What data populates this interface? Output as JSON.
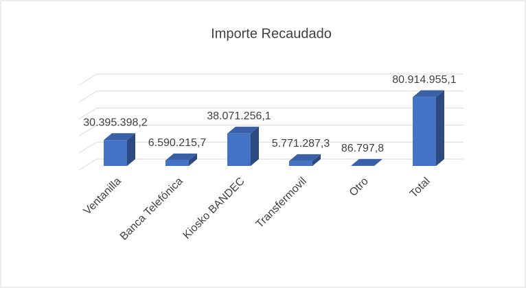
{
  "chart_data": {
    "type": "bar3d",
    "title": "Importe Recaudado",
    "categories": [
      "Ventanilla",
      "Banca Telefónica",
      "Kiosko BANDEC",
      "Transfermovil",
      "Otro",
      "Total"
    ],
    "values": [
      30395398.2,
      6590215.7,
      38071256.1,
      5771287.3,
      86797.8,
      80914955.1
    ],
    "value_labels": [
      "30.395.398,2",
      "6.590.215,7",
      "38.071.256,1",
      "5.771.287,3",
      "86.797,8",
      "80.914.955,1"
    ],
    "color": "#4472c4",
    "ylim": [
      0,
      100000000
    ],
    "yticks": [
      0,
      20000000,
      40000000,
      60000000,
      80000000,
      100000000
    ],
    "grid": true
  }
}
